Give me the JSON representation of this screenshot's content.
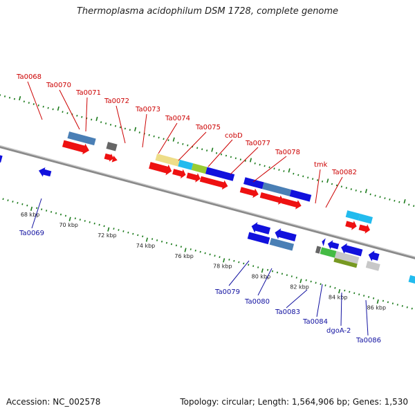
{
  "title": "Thermoplasma acidophilum DSM 1728, complete genome",
  "footer": {
    "accession": "Accession: NC_002578",
    "stats": "Topology: circular; Length: 1,564,906 bp; Genes: 1,530"
  },
  "colors": {
    "forward": "#ee1111",
    "reverse": "#1111dd",
    "steel": "#4a7fb5",
    "grey": "#888888",
    "cyan": "#22bbee",
    "khaki": "#eedd88",
    "lime": "#99cc33",
    "green": "#44bb44",
    "olive": "#779922",
    "lightgrey": "#c8c8c8",
    "teal": "#22ddaa",
    "tick": "#1a7a1a",
    "backbone": "#8a8a8a",
    "label_top": "#cc0000",
    "label_bottom": "#1010a0"
  },
  "kbp_ticks": [
    "68 kbp",
    "70 kbp",
    "72 kbp",
    "74 kbp",
    "76 kbp",
    "78 kbp",
    "80 kbp",
    "82 kbp",
    "84 kbp",
    "86 kbp"
  ],
  "gene_labels_top": [
    "Ta0068",
    "Ta0070",
    "Ta0071",
    "Ta0072",
    "Ta0073",
    "Ta0074",
    "Ta0075",
    "cobD",
    "Ta0077",
    "Ta0078",
    "tmk",
    "Ta0082"
  ],
  "gene_labels_bottom": [
    "Ta0069",
    "Ta0079",
    "Ta0080",
    "Ta0083",
    "Ta0084",
    "dgoA-2",
    "Ta0086"
  ]
}
